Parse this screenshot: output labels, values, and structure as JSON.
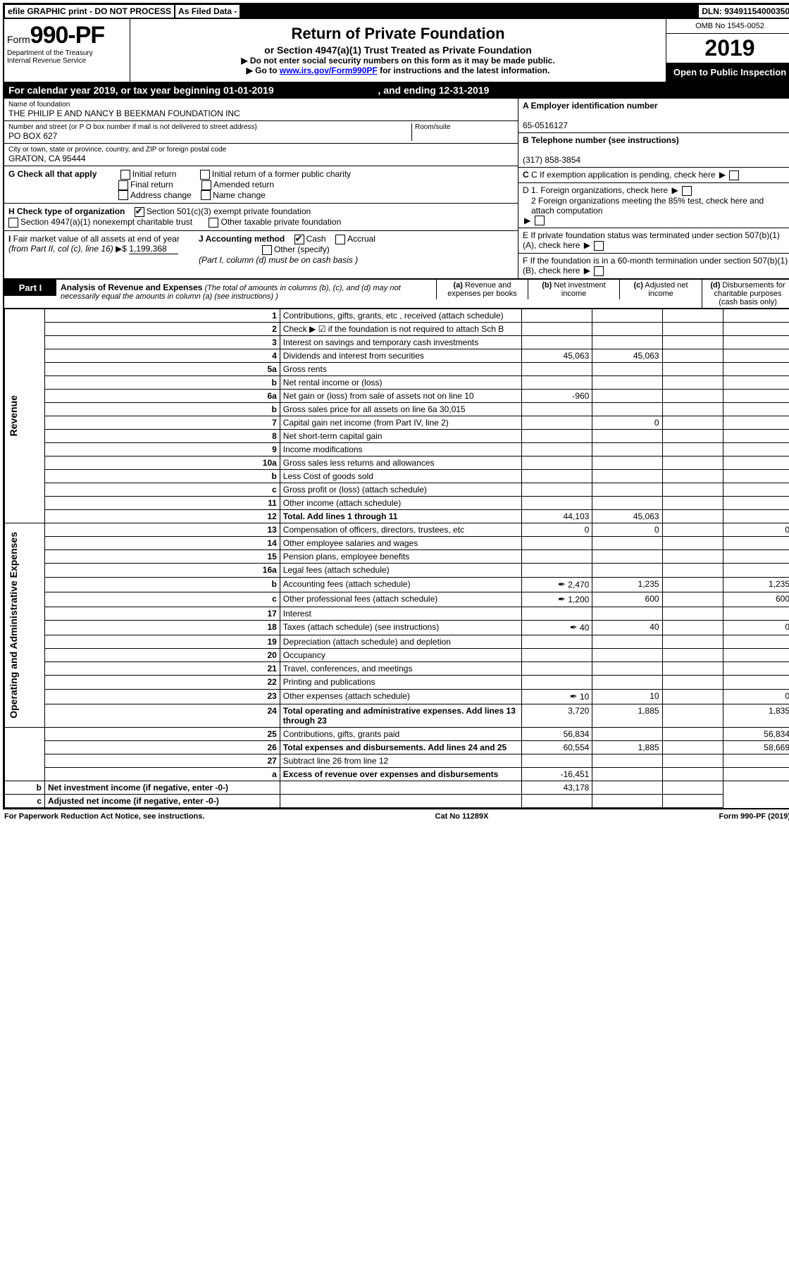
{
  "topbar": {
    "efile": "efile GRAPHIC print - DO NOT PROCESS",
    "asfiled": "As Filed Data -",
    "dln": "DLN: 93491154000350"
  },
  "header": {
    "form_prefix": "Form",
    "form_number": "990-PF",
    "dept": "Department of the Treasury",
    "irs": "Internal Revenue Service",
    "title": "Return of Private Foundation",
    "subtitle": "or Section 4947(a)(1) Trust Treated as Private Foundation",
    "line1": "▶ Do not enter social security numbers on this form as it may be made public.",
    "line2_pre": "▶ Go to ",
    "line2_link": "www.irs.gov/Form990PF",
    "line2_post": " for instructions and the latest information.",
    "omb": "OMB No 1545-0052",
    "year": "2019",
    "open": "Open to Public Inspection"
  },
  "calendar": {
    "pre": "For calendar year 2019, or tax year beginning ",
    "begin": "01-01-2019",
    "mid": " , and ending ",
    "end": "12-31-2019"
  },
  "identity": {
    "name_label": "Name of foundation",
    "name": "THE PHILIP E AND NANCY B BEEKMAN FOUNDATION INC",
    "addr_label": "Number and street (or P O  box number if mail is not delivered to street address)",
    "addr": "PO BOX 627",
    "room_label": "Room/suite",
    "city_label": "City or town, state or province, country, and ZIP or foreign postal code",
    "city": "GRATON, CA  95444",
    "a_label": "A Employer identification number",
    "a_val": "65-0516127",
    "b_label": "B Telephone number (see instructions)",
    "b_val": "(317) 858-3854",
    "c_label": "C If exemption application is pending, check here",
    "d1": "D 1. Foreign organizations, check here",
    "d2": "2 Foreign organizations meeting the 85% test, check here and attach computation",
    "e": "E  If private foundation status was terminated under section 507(b)(1)(A), check here",
    "f": "F  If the foundation is in a 60-month termination under section 507(b)(1)(B), check here"
  },
  "g": {
    "label": "G Check all that apply",
    "opts": [
      "Initial return",
      "Final return",
      "Address change",
      "Initial return of a former public charity",
      "Amended return",
      "Name change"
    ]
  },
  "h": {
    "label": "H Check type of organization",
    "opt1": "Section 501(c)(3) exempt private foundation",
    "opt2": "Section 4947(a)(1) nonexempt charitable trust",
    "opt3": "Other taxable private foundation"
  },
  "i": {
    "label": "I Fair market value of all assets at end of year (from Part II, col  (c), line 16) ▶$ ",
    "val": "1,199,368",
    "j_label": "J Accounting method",
    "j1": "Cash",
    "j2": "Accrual",
    "j3": "Other (specify)",
    "j_note": "(Part I, column (d) must be on cash basis )"
  },
  "part1": {
    "label": "Part I",
    "title": "Analysis of Revenue and Expenses",
    "note": " (The total of amounts in columns (b), (c), and (d) may not necessarily equal the amounts in column (a) (see instructions) )",
    "cols": {
      "a": "(a) Revenue and expenses per books",
      "b": "(b) Net investment income",
      "c": "(c) Adjusted net income",
      "d": "(d) Disbursements for charitable purposes (cash basis only)"
    }
  },
  "side_labels": {
    "revenue": "Revenue",
    "opadmin": "Operating and Administrative Expenses"
  },
  "rows": [
    {
      "n": "1",
      "d": "Contributions, gifts, grants, etc , received (attach schedule)"
    },
    {
      "n": "2",
      "d": "Check ▶ ☑ if the foundation is not required to attach Sch B"
    },
    {
      "n": "3",
      "d": "Interest on savings and temporary cash investments"
    },
    {
      "n": "4",
      "d": "Dividends and interest from securities",
      "a": "45,063",
      "b": "45,063"
    },
    {
      "n": "5a",
      "d": "Gross rents"
    },
    {
      "n": "b",
      "d": "Net rental income or (loss)"
    },
    {
      "n": "6a",
      "d": "Net gain or (loss) from sale of assets not on line 10",
      "a": "-960"
    },
    {
      "n": "b",
      "d": "Gross sales price for all assets on line 6a               30,015"
    },
    {
      "n": "7",
      "d": "Capital gain net income (from Part IV, line 2)",
      "b": "0"
    },
    {
      "n": "8",
      "d": "Net short-term capital gain"
    },
    {
      "n": "9",
      "d": "Income modifications"
    },
    {
      "n": "10a",
      "d": "Gross sales less returns and allowances"
    },
    {
      "n": "b",
      "d": "Less  Cost of goods sold"
    },
    {
      "n": "c",
      "d": "Gross profit or (loss) (attach schedule)"
    },
    {
      "n": "11",
      "d": "Other income (attach schedule)"
    },
    {
      "n": "12",
      "d": "Total. Add lines 1 through 11",
      "a": "44,103",
      "b": "45,063",
      "bold": true
    },
    {
      "n": "13",
      "d": "Compensation of officers, directors, trustees, etc",
      "a": "0",
      "b": "0",
      "dd": "0"
    },
    {
      "n": "14",
      "d": "Other employee salaries and wages"
    },
    {
      "n": "15",
      "d": "Pension plans, employee benefits"
    },
    {
      "n": "16a",
      "d": "Legal fees (attach schedule)"
    },
    {
      "n": "b",
      "d": "Accounting fees (attach schedule)",
      "a": "2,470",
      "b": "1,235",
      "dd": "1,235",
      "att": true
    },
    {
      "n": "c",
      "d": "Other professional fees (attach schedule)",
      "a": "1,200",
      "b": "600",
      "dd": "600",
      "att": true
    },
    {
      "n": "17",
      "d": "Interest"
    },
    {
      "n": "18",
      "d": "Taxes (attach schedule) (see instructions)",
      "a": "40",
      "b": "40",
      "dd": "0",
      "att": true
    },
    {
      "n": "19",
      "d": "Depreciation (attach schedule) and depletion"
    },
    {
      "n": "20",
      "d": "Occupancy"
    },
    {
      "n": "21",
      "d": "Travel, conferences, and meetings"
    },
    {
      "n": "22",
      "d": "Printing and publications"
    },
    {
      "n": "23",
      "d": "Other expenses (attach schedule)",
      "a": "10",
      "b": "10",
      "dd": "0",
      "att": true
    },
    {
      "n": "24",
      "d": "Total operating and administrative expenses. Add lines 13 through 23",
      "a": "3,720",
      "b": "1,885",
      "dd": "1,835",
      "bold": true
    },
    {
      "n": "25",
      "d": "Contributions, gifts, grants paid",
      "a": "56,834",
      "dd": "56,834"
    },
    {
      "n": "26",
      "d": "Total expenses and disbursements. Add lines 24 and 25",
      "a": "60,554",
      "b": "1,885",
      "dd": "58,669",
      "bold": true
    },
    {
      "n": "27",
      "d": "Subtract line 26 from line 12"
    },
    {
      "n": "a",
      "d": "Excess of revenue over expenses and disbursements",
      "a": "-16,451",
      "bold": true
    },
    {
      "n": "b",
      "d": "Net investment income (if negative, enter -0-)",
      "b": "43,178",
      "bold": true
    },
    {
      "n": "c",
      "d": "Adjusted net income (if negative, enter -0-)",
      "bold": true
    }
  ],
  "footer": {
    "left": "For Paperwork Reduction Act Notice, see instructions.",
    "mid": "Cat No  11289X",
    "right": "Form 990-PF (2019)"
  }
}
